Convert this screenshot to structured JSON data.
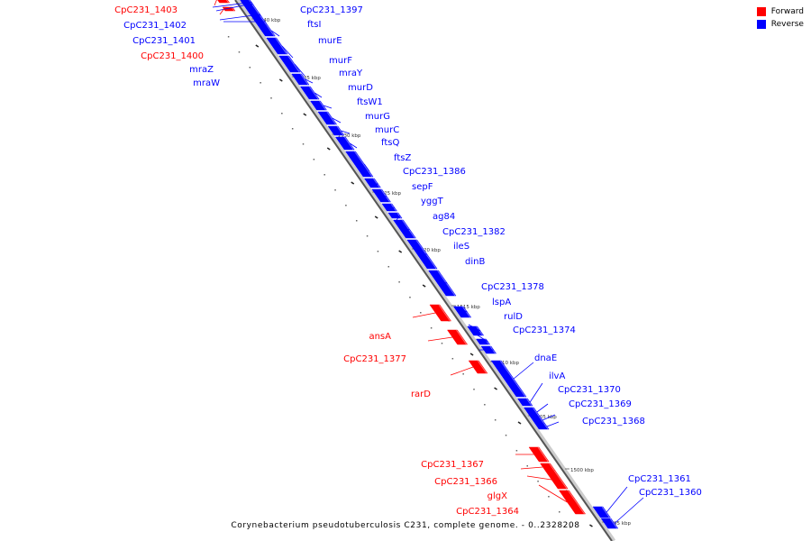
{
  "caption": "Corynebacterium pseudotuberculosis C231, complete genome. - 0..2328208",
  "legend": [
    {
      "label": "Forward",
      "color": "#ff0000"
    },
    {
      "label": "Reverse",
      "color": "#0000ff"
    }
  ],
  "colors": {
    "forward": "#ff0000",
    "reverse": "#0000ff",
    "axis": "#555555"
  },
  "ticks": [
    "1540 kbp",
    "1535 kbp",
    "1530 kbp",
    "1525 kbp",
    "1520 kbp",
    "1515 kbp",
    "1510 kbp",
    "1505 kbp",
    "1500 kbp",
    "1495 kbp"
  ],
  "genes": [
    {
      "name": "CpC231_1403",
      "strand": "forward"
    },
    {
      "name": "CpC231_1402",
      "strand": "reverse"
    },
    {
      "name": "CpC231_1401",
      "strand": "reverse"
    },
    {
      "name": "CpC231_1400",
      "strand": "forward"
    },
    {
      "name": "mraZ",
      "strand": "reverse"
    },
    {
      "name": "mraW",
      "strand": "reverse"
    },
    {
      "name": "CpC231_1397",
      "strand": "reverse"
    },
    {
      "name": "ftsI",
      "strand": "reverse"
    },
    {
      "name": "murE",
      "strand": "reverse"
    },
    {
      "name": "murF",
      "strand": "reverse"
    },
    {
      "name": "mraY",
      "strand": "reverse"
    },
    {
      "name": "murD",
      "strand": "reverse"
    },
    {
      "name": "ftsW1",
      "strand": "reverse"
    },
    {
      "name": "murG",
      "strand": "reverse"
    },
    {
      "name": "murC",
      "strand": "reverse"
    },
    {
      "name": "ftsQ",
      "strand": "reverse"
    },
    {
      "name": "ftsZ",
      "strand": "reverse"
    },
    {
      "name": "CpC231_1386",
      "strand": "reverse"
    },
    {
      "name": "sepF",
      "strand": "reverse"
    },
    {
      "name": "yggT",
      "strand": "reverse"
    },
    {
      "name": "ag84",
      "strand": "reverse"
    },
    {
      "name": "CpC231_1382",
      "strand": "reverse"
    },
    {
      "name": "ileS",
      "strand": "reverse"
    },
    {
      "name": "dinB",
      "strand": "reverse"
    },
    {
      "name": "CpC231_1378",
      "strand": "reverse"
    },
    {
      "name": "lspA",
      "strand": "reverse"
    },
    {
      "name": "rulD",
      "strand": "reverse"
    },
    {
      "name": "CpC231_1374",
      "strand": "reverse"
    },
    {
      "name": "ansA",
      "strand": "forward"
    },
    {
      "name": "CpC231_1377",
      "strand": "forward"
    },
    {
      "name": "rarD",
      "strand": "forward"
    },
    {
      "name": "dnaE",
      "strand": "reverse"
    },
    {
      "name": "ilvA",
      "strand": "reverse"
    },
    {
      "name": "CpC231_1370",
      "strand": "reverse"
    },
    {
      "name": "CpC231_1369",
      "strand": "reverse"
    },
    {
      "name": "CpC231_1368",
      "strand": "reverse"
    },
    {
      "name": "CpC231_1367",
      "strand": "forward"
    },
    {
      "name": "CpC231_1366",
      "strand": "forward"
    },
    {
      "name": "glgX",
      "strand": "forward"
    },
    {
      "name": "CpC231_1364",
      "strand": "forward"
    },
    {
      "name": "CpC231_1361",
      "strand": "reverse"
    },
    {
      "name": "CpC231_1360",
      "strand": "reverse"
    }
  ]
}
